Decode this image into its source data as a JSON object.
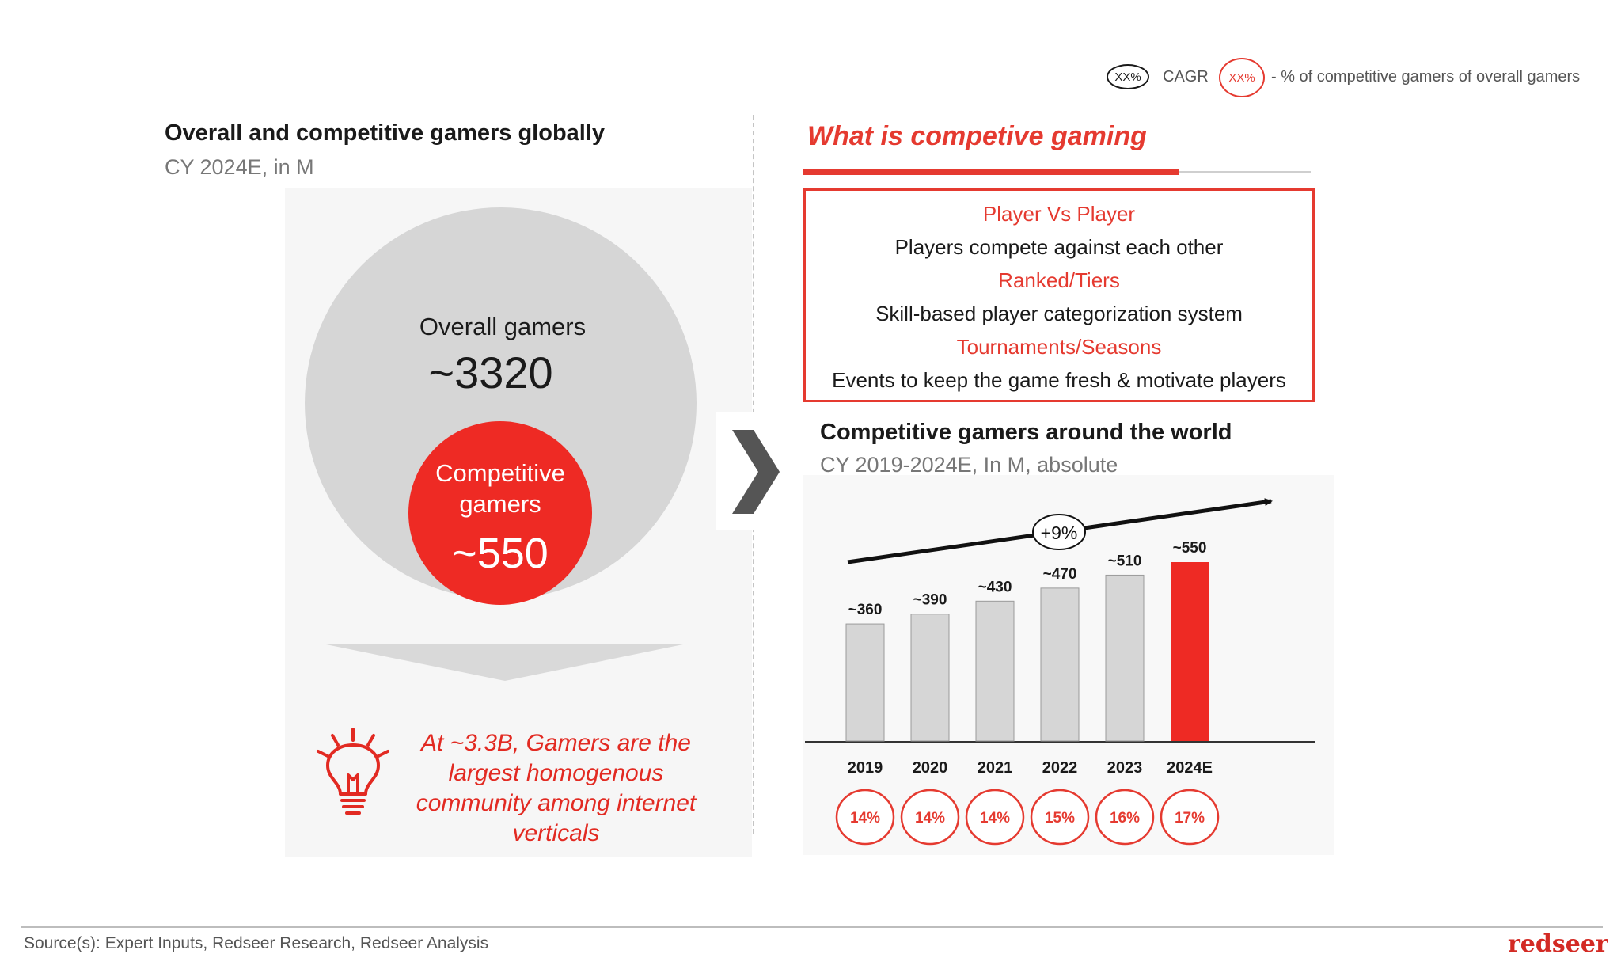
{
  "legend": {
    "cagr_symbol": "XX%",
    "cagr_label": "CAGR",
    "share_symbol": "XX%",
    "share_label": "- % of competitive gamers of overall gamers"
  },
  "left": {
    "title": "Overall and competitive gamers globally",
    "subtitle": "CY 2024E, in M",
    "overall_label": "Overall gamers",
    "overall_value": "~3320",
    "competitive_label_line1": "Competitive",
    "competitive_label_line2": "gamers",
    "competitive_value": "~550",
    "insight_lines": [
      "At ~3.3B, Gamers are the",
      "largest homogenous",
      "community among internet",
      "verticals"
    ]
  },
  "definition": {
    "title": "What is competive gaming",
    "lines": [
      {
        "text": "Player Vs Player",
        "style": "red"
      },
      {
        "text": "Players compete against each other",
        "style": "dark"
      },
      {
        "text": "Ranked/Tiers",
        "style": "red"
      },
      {
        "text": "Skill-based player categorization system",
        "style": "dark"
      },
      {
        "text": "Tournaments/Seasons",
        "style": "red"
      },
      {
        "text": "Events to keep the game fresh & motivate players",
        "style": "dark"
      }
    ]
  },
  "chart_data": {
    "type": "bar",
    "title": "Competitive gamers around the world",
    "subtitle": "CY 2019-2024E, In M, absolute",
    "categories": [
      "2019",
      "2020",
      "2021",
      "2022",
      "2023",
      "2024E"
    ],
    "values": [
      360,
      390,
      430,
      470,
      510,
      550
    ],
    "value_labels": [
      "~360",
      "~390",
      "~430",
      "~470",
      "~510",
      "~550"
    ],
    "share_labels": [
      "14%",
      "14%",
      "14%",
      "15%",
      "16%",
      "17%"
    ],
    "cagr_label": "+9%",
    "highlight_category": "2024E",
    "ylim": [
      0,
      550
    ],
    "colors": {
      "bar": "#d6d6d6",
      "highlight": "#ee2a24",
      "accent": "#e53a30"
    }
  },
  "footer": {
    "source": "Source(s): Expert Inputs, Redseer Research, Redseer Analysis",
    "logo": "redseer"
  }
}
